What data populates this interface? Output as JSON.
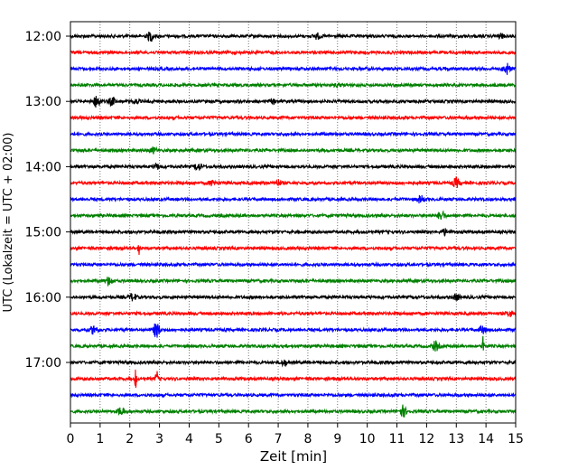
{
  "chart_data": {
    "type": "line",
    "title": "",
    "xlabel": "Zeit  [min]",
    "ylabel": "UTC (Lokalzeit = UTC + 02:00)",
    "xlim": [
      0,
      15
    ],
    "x_ticks": [
      "0",
      "1",
      "2",
      "3",
      "4",
      "5",
      "6",
      "7",
      "8",
      "9",
      "10",
      "11",
      "12",
      "13",
      "14",
      "15"
    ],
    "y_ticks": [
      "12:00",
      "13:00",
      "14:00",
      "15:00",
      "16:00",
      "17:00"
    ],
    "grid": "vertical dotted",
    "trace_interval_min": 15,
    "colors": [
      "#000000",
      "#ff0000",
      "#0000ff",
      "#008000"
    ],
    "series": [
      {
        "start": "12:00",
        "events": [
          {
            "t": 2.7,
            "amp": 5
          },
          {
            "t": 8.3,
            "amp": 3
          },
          {
            "t": 14.5,
            "amp": 2
          }
        ]
      },
      {
        "start": "12:15",
        "events": []
      },
      {
        "start": "12:30",
        "events": [
          {
            "t": 14.7,
            "amp": 6
          }
        ]
      },
      {
        "start": "12:45",
        "events": [
          {
            "t": 9.0,
            "amp": 1.5
          }
        ]
      },
      {
        "start": "13:00",
        "events": [
          {
            "t": 0.9,
            "amp": 7
          },
          {
            "t": 1.4,
            "amp": 4
          },
          {
            "t": 2.2,
            "amp": 2
          },
          {
            "t": 6.8,
            "amp": 2
          }
        ]
      },
      {
        "start": "13:15",
        "events": []
      },
      {
        "start": "13:30",
        "events": []
      },
      {
        "start": "13:45",
        "events": [
          {
            "t": 2.8,
            "amp": 3
          }
        ]
      },
      {
        "start": "14:00",
        "events": [
          {
            "t": 2.9,
            "amp": 2.5
          },
          {
            "t": 4.3,
            "amp": 4
          }
        ]
      },
      {
        "start": "14:15",
        "events": [
          {
            "t": 4.8,
            "amp": 3
          },
          {
            "t": 7.0,
            "amp": 3
          },
          {
            "t": 13.0,
            "amp": 5
          }
        ]
      },
      {
        "start": "14:30",
        "events": [
          {
            "t": 11.8,
            "amp": 4
          }
        ]
      },
      {
        "start": "14:45",
        "events": [
          {
            "t": 12.5,
            "amp": 5
          }
        ]
      },
      {
        "start": "15:00",
        "events": [
          {
            "t": 12.6,
            "amp": 3
          }
        ]
      },
      {
        "start": "15:15",
        "events": [
          {
            "t": 2.3,
            "amp": 10,
            "spike": true
          }
        ]
      },
      {
        "start": "15:30",
        "events": []
      },
      {
        "start": "15:45",
        "events": [
          {
            "t": 1.3,
            "amp": 5
          }
        ]
      },
      {
        "start": "16:00",
        "events": [
          {
            "t": 2.1,
            "amp": 4
          },
          {
            "t": 13.0,
            "amp": 3
          }
        ]
      },
      {
        "start": "16:15",
        "events": [
          {
            "t": 14.8,
            "amp": 3
          }
        ]
      },
      {
        "start": "16:30",
        "events": [
          {
            "t": 0.8,
            "amp": 5
          },
          {
            "t": 2.9,
            "amp": 8
          },
          {
            "t": 13.9,
            "amp": 4
          }
        ]
      },
      {
        "start": "16:45",
        "events": [
          {
            "t": 12.3,
            "amp": 5
          },
          {
            "t": 13.9,
            "amp": 14,
            "spike": true
          }
        ]
      },
      {
        "start": "17:00",
        "events": [
          {
            "t": 7.2,
            "amp": 3
          }
        ]
      },
      {
        "start": "17:15",
        "events": [
          {
            "t": 2.2,
            "amp": 14,
            "spike": true
          },
          {
            "t": 2.9,
            "amp": 16,
            "spike": true
          }
        ]
      },
      {
        "start": "17:30",
        "events": []
      },
      {
        "start": "17:45",
        "events": [
          {
            "t": 1.7,
            "amp": 4
          },
          {
            "t": 11.2,
            "amp": 6
          }
        ]
      }
    ]
  }
}
